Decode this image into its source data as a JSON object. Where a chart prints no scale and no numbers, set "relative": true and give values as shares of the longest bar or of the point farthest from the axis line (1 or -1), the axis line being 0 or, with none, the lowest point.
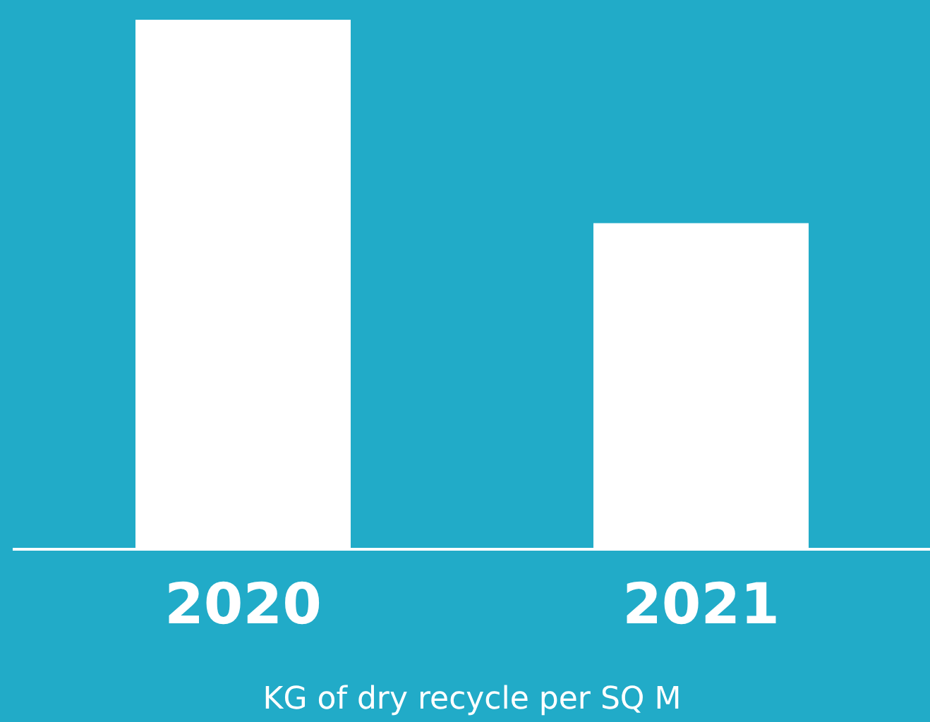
{
  "chart_data": {
    "type": "bar",
    "relative": true,
    "categories": [
      "2020",
      "2021"
    ],
    "values": [
      1,
      0.616
    ],
    "color": "#ffffff",
    "xlabel": "KG of dry recycle per SQ M"
  }
}
